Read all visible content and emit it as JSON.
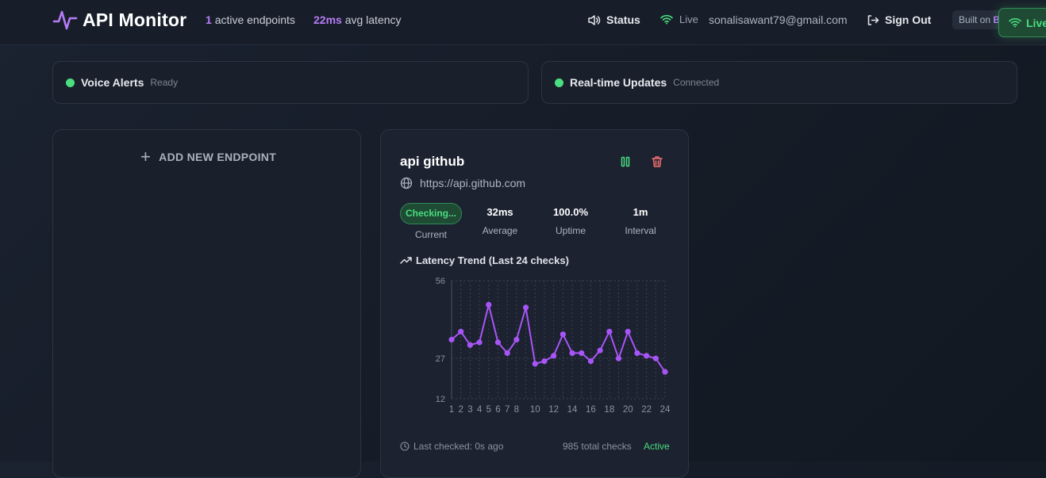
{
  "header": {
    "title": "API Monitor",
    "active_count": "1",
    "active_label": "active endpoints",
    "latency_value": "22ms",
    "latency_label": "avg latency",
    "status_label": "Status",
    "live_label": "Live",
    "email": "sonalisawant79@gmail.com",
    "signout_label": "Sign Out",
    "built_prefix": "Built on ",
    "built_name": "B",
    "live_badge": "Live",
    "accent": "#b57cf7",
    "success": "#4ade80"
  },
  "status_cards": [
    {
      "title": "Voice Alerts",
      "subtitle": "Ready"
    },
    {
      "title": "Real-time Updates",
      "subtitle": "Connected"
    }
  ],
  "add_panel": {
    "label": "ADD NEW ENDPOINT"
  },
  "endpoint": {
    "name": "api github",
    "url": "https://api.github.com",
    "status_badge": "Checking...",
    "current_label": "Current",
    "metrics": [
      {
        "value": "32ms",
        "label": "Average"
      },
      {
        "value": "100.0%",
        "label": "Uptime"
      },
      {
        "value": "1m",
        "label": "Interval"
      }
    ],
    "trend_title": "Latency Trend (Last 24 checks)",
    "last_checked": "Last checked: 0s ago",
    "total_checks": "985 total checks",
    "state": "Active"
  },
  "chart_data": {
    "type": "line",
    "title": "Latency Trend (Last 24 checks)",
    "x": [
      1,
      2,
      3,
      4,
      5,
      6,
      7,
      8,
      9,
      10,
      11,
      12,
      13,
      14,
      15,
      16,
      17,
      18,
      19,
      20,
      21,
      22,
      23,
      24
    ],
    "x_tick_labels": [
      "1",
      "2",
      "3",
      "4",
      "5",
      "6",
      "7",
      "8",
      "10",
      "12",
      "14",
      "16",
      "18",
      "20",
      "22",
      "24"
    ],
    "y_ticks": [
      12,
      27,
      56
    ],
    "ylim": [
      12,
      56
    ],
    "series": [
      {
        "values": [
          34,
          37,
          32,
          33,
          47,
          33,
          29,
          34,
          46,
          25,
          26,
          28,
          36,
          29,
          29,
          26,
          30,
          37,
          27,
          37,
          29,
          28,
          27,
          22
        ]
      }
    ],
    "line_color": "#a855f7",
    "grid": true
  }
}
